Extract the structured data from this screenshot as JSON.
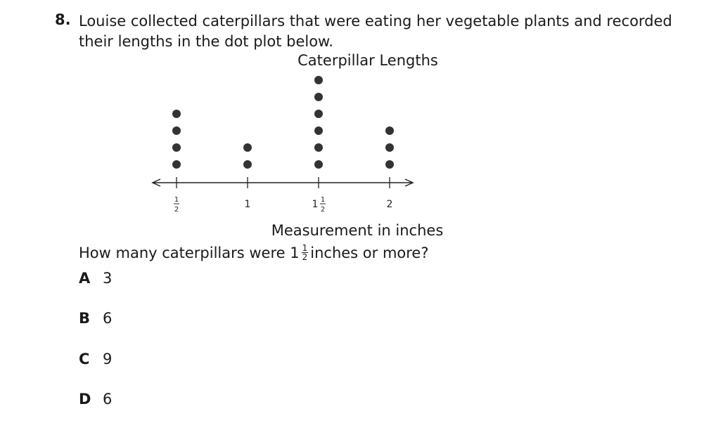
{
  "question": {
    "number": "8.",
    "stem": "Louise collected caterpillars that were eating her vegetable plants and recorded their lengths in the dot plot below.",
    "prompt_before": "How many caterpillars were 1",
    "prompt_frac_num": "1",
    "prompt_frac_den": "2",
    "prompt_after": "inches or more?"
  },
  "chart_data": {
    "type": "dot plot",
    "title": "Caterpillar Lengths",
    "xlabel": "Measurement in inches",
    "x_ticks": [
      {
        "value": 0.5,
        "whole": "",
        "num": "1",
        "den": "2"
      },
      {
        "value": 1,
        "whole": "1",
        "num": "",
        "den": ""
      },
      {
        "value": 1.5,
        "whole": "1",
        "num": "1",
        "den": "2"
      },
      {
        "value": 2,
        "whole": "2",
        "num": "",
        "den": ""
      }
    ],
    "x": [
      0.5,
      1,
      1.5,
      2
    ],
    "counts": [
      4,
      2,
      6,
      3
    ]
  },
  "choices": [
    {
      "letter": "A",
      "text": "3"
    },
    {
      "letter": "B",
      "text": "6"
    },
    {
      "letter": "C",
      "text": "9"
    },
    {
      "letter": "D",
      "text": "6"
    }
  ]
}
